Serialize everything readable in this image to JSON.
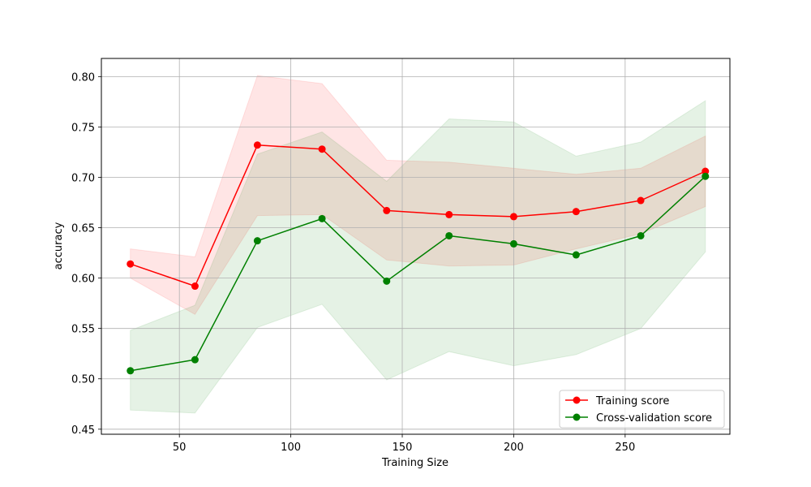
{
  "chart_data": {
    "type": "line",
    "title": "",
    "xlabel": "Training Size",
    "ylabel": "accuracy",
    "xlim": [
      15,
      297
    ],
    "ylim": [
      0.445,
      0.818
    ],
    "grid": true,
    "legend_position": "bottom-right",
    "xticks": [
      50,
      100,
      150,
      200,
      250
    ],
    "yticks": [
      0.45,
      0.5,
      0.55,
      0.6,
      0.65,
      0.7,
      0.75,
      0.8
    ],
    "xtick_labels": [
      "50",
      "100",
      "150",
      "200",
      "250"
    ],
    "ytick_labels": [
      "0.45",
      "0.50",
      "0.55",
      "0.60",
      "0.65",
      "0.70",
      "0.75",
      "0.80"
    ],
    "x": [
      28,
      57,
      85,
      114,
      143,
      171,
      200,
      228,
      257,
      286
    ],
    "series": [
      {
        "name": "Training score",
        "color": "#ff0000",
        "values": [
          0.614,
          0.592,
          0.732,
          0.728,
          0.667,
          0.663,
          0.661,
          0.666,
          0.677,
          0.706
        ],
        "band_upper": [
          0.629,
          0.621,
          0.801,
          0.793,
          0.717,
          0.715,
          0.709,
          0.703,
          0.709,
          0.741
        ],
        "band_lower": [
          0.6,
          0.564,
          0.662,
          0.663,
          0.618,
          0.612,
          0.613,
          0.629,
          0.644,
          0.671
        ]
      },
      {
        "name": "Cross-validation score",
        "color": "#008000",
        "values": [
          0.508,
          0.519,
          0.637,
          0.659,
          0.597,
          0.642,
          0.634,
          0.623,
          0.642,
          0.701
        ],
        "band_upper": [
          0.548,
          0.573,
          0.723,
          0.745,
          0.696,
          0.758,
          0.755,
          0.721,
          0.735,
          0.776
        ],
        "band_lower": [
          0.469,
          0.466,
          0.551,
          0.574,
          0.499,
          0.527,
          0.513,
          0.524,
          0.55,
          0.626
        ]
      }
    ]
  }
}
